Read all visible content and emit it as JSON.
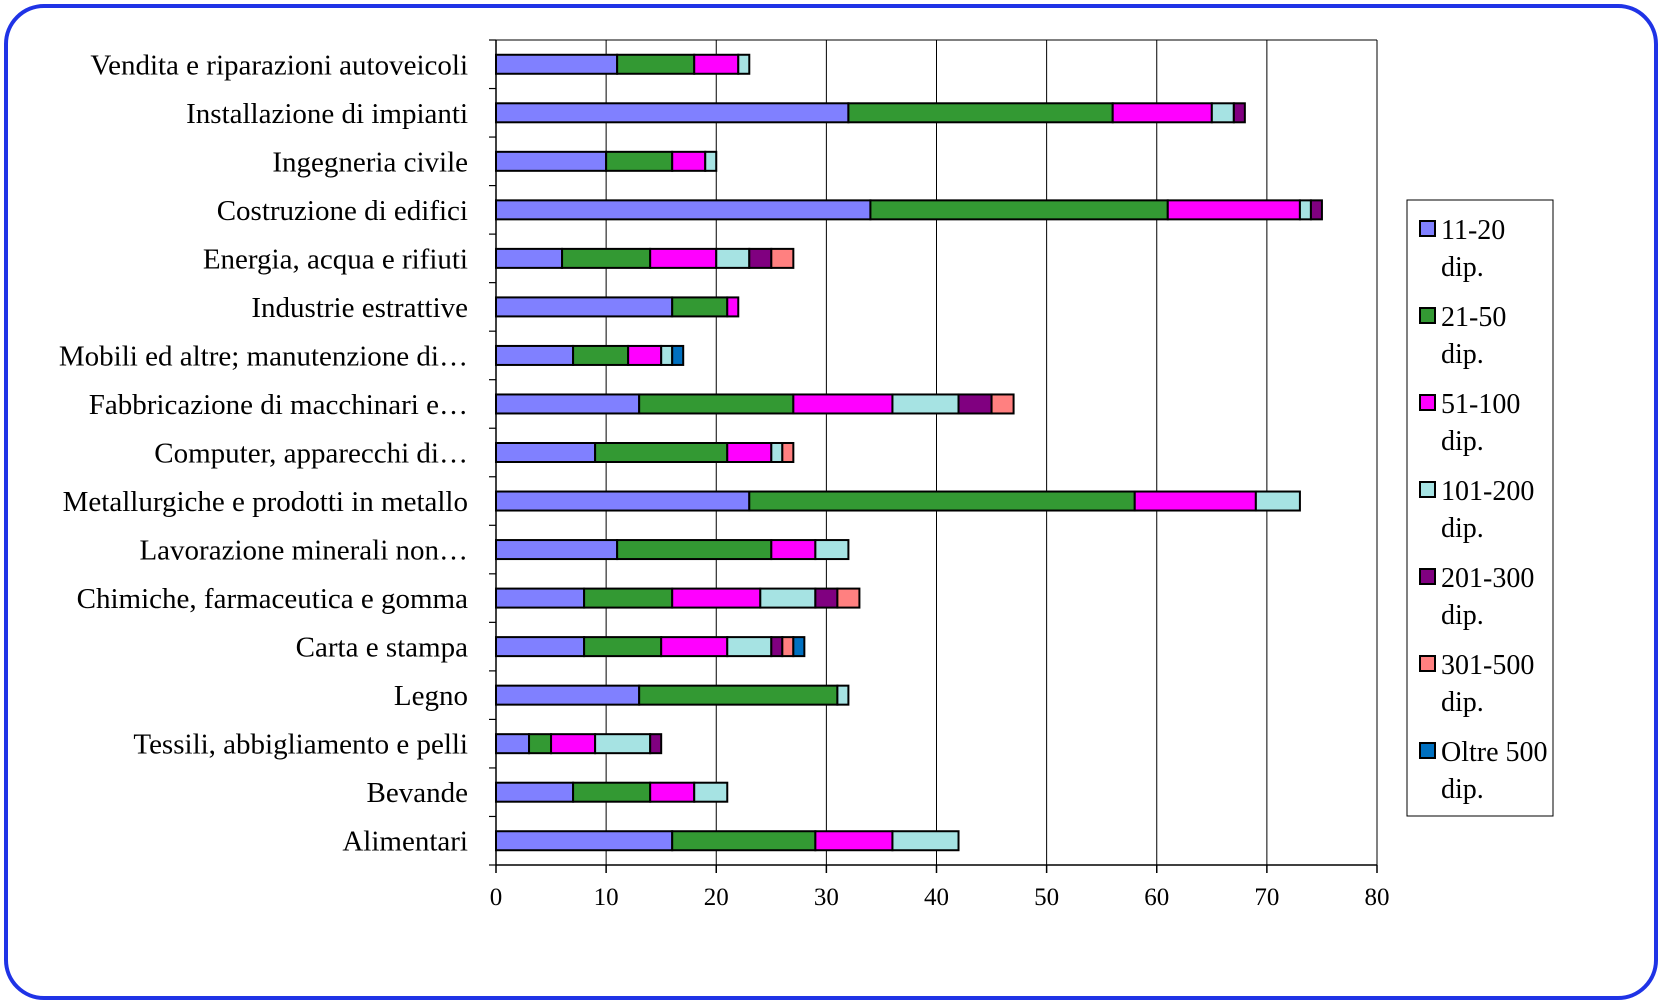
{
  "chart_data": {
    "type": "bar",
    "orientation": "horizontal",
    "stacked": true,
    "categories": [
      "Alimentari",
      "Bevande",
      "Tessili, abbigliamento e pelli",
      "Legno",
      "Carta e stampa",
      "Chimiche, farmaceutica e gomma",
      "Lavorazione minerali non…",
      "Metallurgiche e prodotti in metallo",
      "Computer, apparecchi di…",
      "Fabbricazione di macchinari e…",
      "Mobili ed altre; manutenzione di…",
      "Industrie estrattive",
      "Energia, acqua e rifiuti",
      "Costruzione di edifici",
      "Ingegneria civile",
      "Installazione di impianti",
      "Vendita e riparazioni autoveicoli"
    ],
    "series": [
      {
        "name": "11-20 dip.",
        "label_lines": [
          "11-20",
          "dip."
        ],
        "color": "#8080ff",
        "values": [
          16,
          7,
          3,
          13,
          8,
          8,
          11,
          23,
          9,
          13,
          7,
          16,
          6,
          34,
          10,
          32,
          11
        ]
      },
      {
        "name": "21-50 dip.",
        "label_lines": [
          "21-50",
          "dip."
        ],
        "color": "#339933",
        "values": [
          13,
          7,
          2,
          18,
          7,
          8,
          14,
          35,
          12,
          14,
          5,
          5,
          8,
          27,
          6,
          24,
          7
        ]
      },
      {
        "name": "51-100 dip.",
        "label_lines": [
          "51-100",
          "dip."
        ],
        "color": "#ff00ff",
        "values": [
          7,
          4,
          4,
          0,
          6,
          8,
          4,
          11,
          4,
          9,
          3,
          1,
          6,
          12,
          3,
          9,
          4
        ]
      },
      {
        "name": "101-200 dip.",
        "label_lines": [
          "101-200",
          "dip."
        ],
        "color": "#a6e3e3",
        "values": [
          6,
          3,
          5,
          1,
          4,
          5,
          3,
          4,
          1,
          6,
          1,
          0,
          3,
          1,
          1,
          2,
          1
        ]
      },
      {
        "name": "201-300 dip.",
        "label_lines": [
          "201-300",
          "dip."
        ],
        "color": "#800080",
        "values": [
          0,
          0,
          1,
          0,
          1,
          2,
          0,
          0,
          0,
          3,
          0,
          0,
          2,
          1,
          0,
          1,
          0
        ]
      },
      {
        "name": "301-500 dip.",
        "label_lines": [
          "301-500",
          "dip."
        ],
        "color": "#ff8080",
        "values": [
          0,
          0,
          0,
          0,
          1,
          2,
          0,
          0,
          1,
          2,
          0,
          0,
          2,
          0,
          0,
          0,
          0
        ]
      },
      {
        "name": "Oltre 500 dip.",
        "label_lines": [
          "Oltre 500",
          "dip."
        ],
        "color": "#0070c0",
        "values": [
          0,
          0,
          0,
          0,
          1,
          0,
          0,
          0,
          0,
          0,
          1,
          0,
          0,
          0,
          0,
          0,
          0
        ]
      }
    ],
    "xlim": [
      0,
      80
    ],
    "xticks": [
      0,
      10,
      20,
      30,
      40,
      50,
      60,
      70,
      80
    ],
    "grid": "vertical",
    "legend": "right",
    "title": "",
    "xlabel": "",
    "ylabel": ""
  }
}
